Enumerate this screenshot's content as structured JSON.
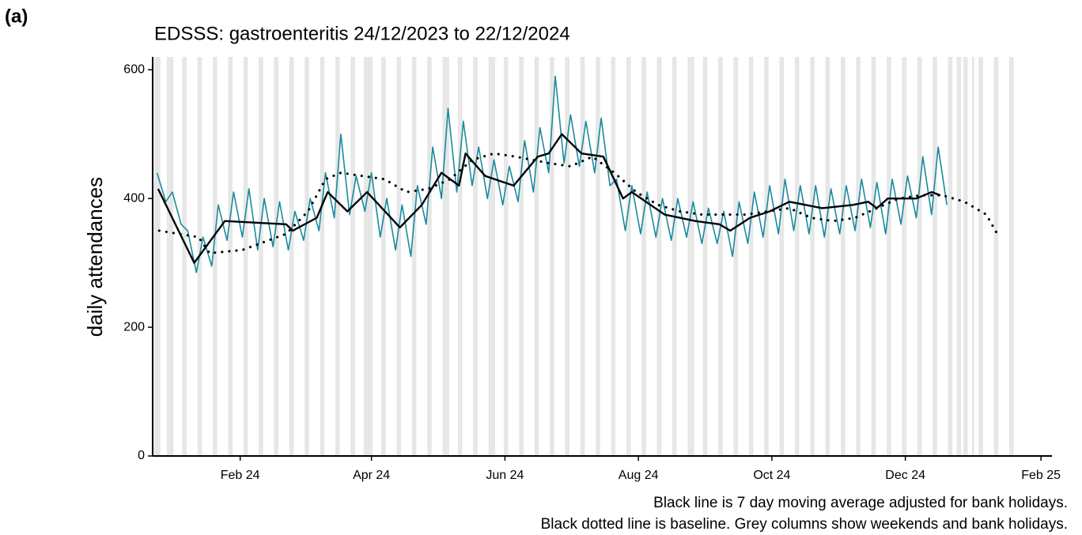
{
  "chart_data": {
    "type": "line",
    "panel_label": "(a)",
    "title": "EDSSS: gastroenteritis 24/12/2023 to 22/12/2024",
    "y_label": "daily attendances",
    "caption": [
      "Black line is 7 day moving average adjusted for bank holidays.",
      "Black dotted line is baseline. Grey columns show weekends and bank holidays."
    ],
    "xlim": [
      -1,
      410
    ],
    "ylim": [
      0,
      620
    ],
    "xticks": [
      {
        "value": 39,
        "label": "Feb 24"
      },
      {
        "value": 99,
        "label": "Apr 24"
      },
      {
        "value": 160,
        "label": "Jun 24"
      },
      {
        "value": 221,
        "label": "Aug 24"
      },
      {
        "value": 282,
        "label": "Oct 24"
      },
      {
        "value": 343,
        "label": "Dec 24"
      },
      {
        "value": 405,
        "label": "Feb 25"
      }
    ],
    "yticks": [
      0,
      200,
      400,
      600
    ],
    "shade_color": "#e6e6e6",
    "shaded_days": [
      0,
      1,
      2,
      6,
      7,
      8,
      13,
      14,
      20,
      21,
      27,
      28,
      34,
      35,
      41,
      42,
      48,
      49,
      55,
      56,
      62,
      63,
      69,
      70,
      76,
      77,
      83,
      84,
      90,
      91,
      96,
      97,
      98,
      99,
      104,
      105,
      111,
      112,
      118,
      119,
      125,
      126,
      132,
      133,
      134,
      139,
      140,
      146,
      147,
      153,
      154,
      155,
      160,
      161,
      167,
      168,
      174,
      175,
      181,
      182,
      188,
      189,
      195,
      196,
      202,
      203,
      209,
      210,
      216,
      217,
      223,
      224,
      230,
      231,
      237,
      238,
      244,
      245,
      246,
      251,
      252,
      258,
      259,
      265,
      266,
      272,
      273,
      279,
      280,
      286,
      287,
      293,
      294,
      300,
      301,
      307,
      308,
      314,
      315,
      321,
      322,
      328,
      329,
      335,
      336,
      342,
      343,
      349,
      350,
      356,
      357,
      363,
      364,
      367,
      368,
      370,
      371,
      374,
      377,
      378,
      384,
      385,
      391,
      392
    ],
    "series": [
      {
        "color": "#1a8a9e",
        "style": "solid",
        "width": 1.6,
        "x": [
          1,
          5,
          8,
          12,
          15,
          19,
          22,
          26,
          29,
          33,
          36,
          40,
          43,
          47,
          50,
          54,
          57,
          61,
          64,
          68,
          71,
          75,
          78,
          82,
          85,
          89,
          92,
          96,
          99,
          103,
          106,
          110,
          113,
          117,
          120,
          124,
          127,
          131,
          134,
          138,
          141,
          145,
          148,
          152,
          155,
          159,
          162,
          166,
          169,
          173,
          176,
          180,
          183,
          187,
          190,
          194,
          197,
          201,
          204,
          208,
          211,
          215,
          218,
          222,
          225,
          229,
          232,
          236,
          239,
          243,
          246,
          250,
          253,
          257,
          260,
          264,
          267,
          271,
          274,
          278,
          281,
          285,
          288,
          292,
          295,
          299,
          302,
          306,
          309,
          313,
          316,
          320,
          323,
          327,
          330,
          334,
          337,
          341,
          344,
          348,
          351,
          355,
          358,
          362
        ],
        "values": [
          440,
          395,
          410,
          360,
          350,
          285,
          340,
          295,
          390,
          335,
          410,
          340,
          415,
          320,
          400,
          325,
          395,
          320,
          380,
          335,
          400,
          350,
          440,
          370,
          500,
          375,
          435,
          380,
          440,
          340,
          400,
          320,
          390,
          310,
          420,
          360,
          480,
          400,
          540,
          410,
          520,
          420,
          480,
          400,
          460,
          390,
          450,
          395,
          490,
          410,
          510,
          440,
          590,
          455,
          530,
          450,
          520,
          440,
          525,
          420,
          430,
          350,
          420,
          345,
          410,
          340,
          400,
          335,
          400,
          340,
          395,
          330,
          385,
          330,
          380,
          310,
          395,
          330,
          410,
          340,
          420,
          345,
          430,
          350,
          420,
          345,
          420,
          340,
          415,
          345,
          420,
          350,
          430,
          355,
          425,
          345,
          430,
          360,
          435,
          370,
          465,
          375,
          480,
          390
        ]
      },
      {
        "color": "#000000",
        "style": "solid",
        "width": 2.4,
        "x": [
          1.5,
          18,
          32,
          60,
          63,
          74,
          79,
          88,
          97,
          112,
          122,
          131,
          139,
          142,
          151,
          164,
          175,
          180,
          186,
          195,
          205,
          214,
          218,
          233,
          247,
          258,
          263,
          272,
          281,
          290,
          305,
          319,
          326,
          330,
          335,
          348,
          355,
          359
        ],
        "values": [
          415,
          300,
          365,
          360,
          350,
          370,
          410,
          380,
          410,
          355,
          390,
          440,
          420,
          470,
          435,
          420,
          465,
          470,
          500,
          470,
          465,
          400,
          410,
          375,
          365,
          360,
          350,
          370,
          380,
          395,
          385,
          390,
          395,
          385,
          400,
          400,
          410,
          405
        ]
      },
      {
        "color": "#000000",
        "style": "dotted",
        "width": 2.4,
        "x": [
          2,
          20,
          25,
          40,
          60,
          70,
          78,
          85,
          95,
          105,
          115,
          125,
          135,
          145,
          155,
          165,
          180,
          190,
          200,
          210,
          220,
          230,
          240,
          250,
          260,
          270,
          280,
          290,
          300,
          310,
          320,
          330,
          340,
          350,
          360,
          370,
          380,
          385
        ],
        "values": [
          350,
          340,
          315,
          320,
          345,
          380,
          430,
          440,
          435,
          430,
          410,
          415,
          430,
          460,
          470,
          465,
          455,
          450,
          465,
          440,
          410,
          390,
          380,
          375,
          375,
          375,
          380,
          385,
          370,
          365,
          370,
          385,
          400,
          405,
          405,
          395,
          375,
          345
        ]
      }
    ]
  }
}
